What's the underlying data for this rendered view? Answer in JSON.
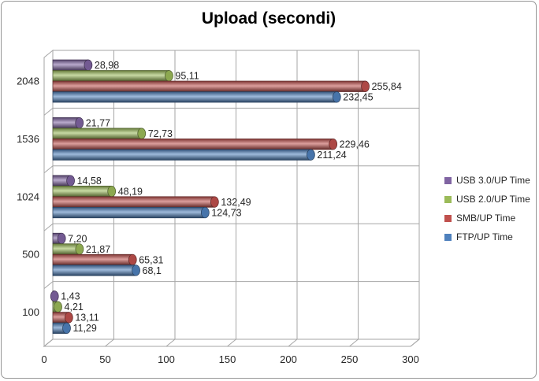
{
  "chart_data": {
    "type": "bar",
    "orientation": "horizontal",
    "style": "3d-cylinder",
    "title": "Upload (secondi)",
    "categories": [
      "2048",
      "1536",
      "1024",
      "500",
      "100"
    ],
    "series": [
      {
        "name": "USB 3.0/UP Time",
        "color": "#8064A2",
        "values": [
          28.98,
          21.77,
          14.58,
          7.2,
          1.43
        ],
        "labels": [
          "28,98",
          "21,77",
          "14,58",
          "7,20",
          "1,43"
        ]
      },
      {
        "name": "USB 2.0/UP Time",
        "color": "#9BBB59",
        "values": [
          95.11,
          72.73,
          48.19,
          21.87,
          4.21
        ],
        "labels": [
          "95,11",
          "72,73",
          "48,19",
          "21,87",
          "4,21"
        ]
      },
      {
        "name": "SMB/UP Time",
        "color": "#C0504D",
        "values": [
          255.84,
          229.46,
          132.49,
          65.31,
          13.11
        ],
        "labels": [
          "255,84",
          "229,46",
          "132,49",
          "65,31",
          "13,11"
        ]
      },
      {
        "name": "FTP/UP Time",
        "color": "#4F81BD",
        "values": [
          232.45,
          211.24,
          124.73,
          68.1,
          11.29
        ],
        "labels": [
          "232,45",
          "211,24",
          "124,73",
          "68,1",
          "11,29"
        ]
      }
    ],
    "x_axis": {
      "min": 0,
      "max": 300,
      "tick_step": 50,
      "ticks": [
        0,
        50,
        100,
        150,
        200,
        250,
        300
      ]
    },
    "legend": {
      "position": "right",
      "entries": [
        "USB 3.0/UP Time",
        "USB 2.0/UP Time",
        "SMB/UP Time",
        "FTP/UP Time"
      ]
    },
    "grid": true
  },
  "colors": {
    "grid": "#A6A6A6",
    "text": "#262626",
    "title": "#000000",
    "frame_border": "#969696",
    "background": "#FFFFFF"
  }
}
